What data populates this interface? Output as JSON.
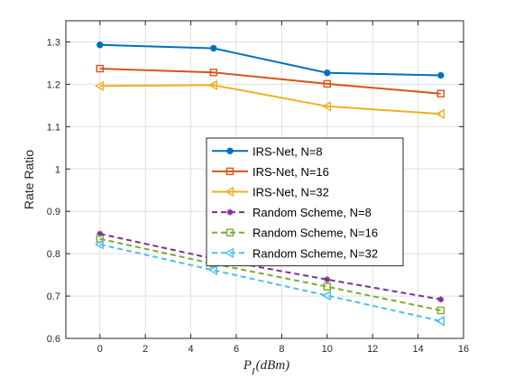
{
  "chart_data": {
    "type": "line",
    "title": "",
    "xlabel": "P_I(dBm)",
    "xlabel_main": "P",
    "xlabel_sub": "I",
    "xlabel_unit": "(dBm)",
    "ylabel": "Rate Ratio",
    "xlim": [
      -1.5,
      16
    ],
    "ylim": [
      0.6,
      1.35
    ],
    "xticks": [
      0,
      2,
      4,
      6,
      8,
      10,
      12,
      14,
      16
    ],
    "yticks": [
      0.6,
      0.7,
      0.8,
      0.9,
      1.0,
      1.1,
      1.2,
      1.3
    ],
    "ytick_labels": [
      "0.6",
      "0.7",
      "0.8",
      "0.9",
      "1",
      "1.1",
      "1.2",
      "1.3"
    ],
    "grid": true,
    "legend_position": "center-right",
    "x": [
      0,
      5,
      10,
      15
    ],
    "series": [
      {
        "name": "IRS-Net, N=8",
        "values": [
          1.293,
          1.285,
          1.227,
          1.221
        ],
        "color": "#0072BD",
        "dash": "solid",
        "marker": "circle"
      },
      {
        "name": "IRS-Net, N=16",
        "values": [
          1.237,
          1.228,
          1.201,
          1.178
        ],
        "color": "#D95319",
        "dash": "solid",
        "marker": "square"
      },
      {
        "name": "IRS-Net, N=32",
        "values": [
          1.196,
          1.198,
          1.148,
          1.13
        ],
        "color": "#EDB120",
        "dash": "solid",
        "marker": "triangle-left"
      },
      {
        "name": "Random Scheme, N=8",
        "values": [
          0.847,
          0.788,
          0.739,
          0.692
        ],
        "color": "#7E2F8E",
        "dash": "dashed",
        "marker": "asterisk"
      },
      {
        "name": "Random Scheme, N=16",
        "values": [
          0.835,
          0.776,
          0.722,
          0.666
        ],
        "color": "#77AC30",
        "dash": "dashed",
        "marker": "square"
      },
      {
        "name": "Random Scheme, N=32",
        "values": [
          0.822,
          0.761,
          0.701,
          0.641
        ],
        "color": "#4DBEEE",
        "dash": "dashed",
        "marker": "triangle-left"
      }
    ]
  }
}
